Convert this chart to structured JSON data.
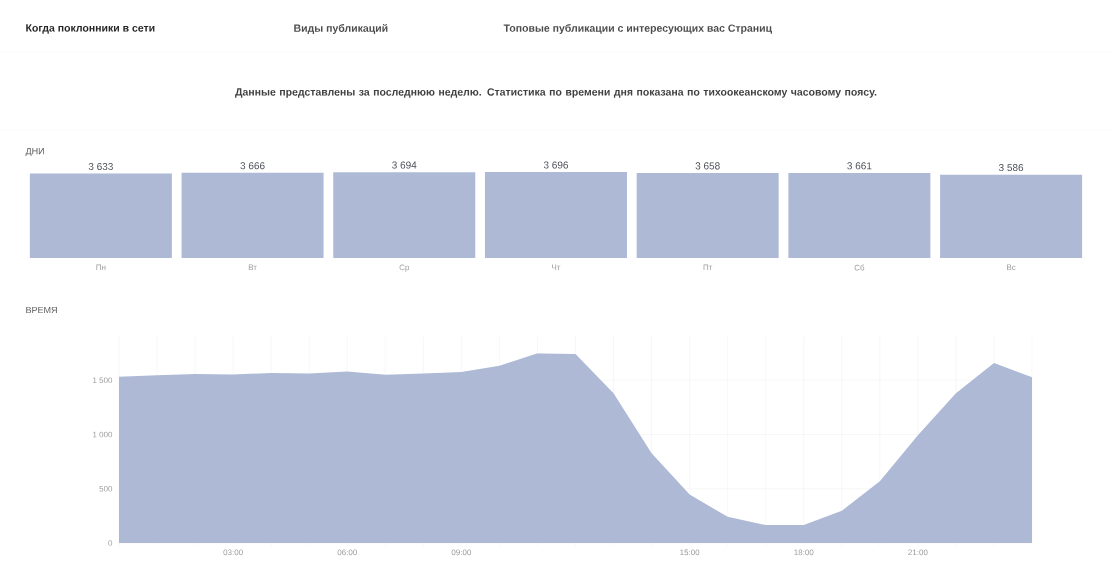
{
  "chart_data": [
    {
      "type": "bar",
      "title": "ДНИ",
      "annotations": [
        "Когда поклонники в сети",
        "Виды публикаций",
        "Топовые публикации с интересующих вас Страниц",
        "Данные представлены за последнюю неделю. Статистика по времени дня показана по тихоокеанскому часовому поясу."
      ],
      "categories": [
        "Пн",
        "Вт",
        "Ср",
        "Чт",
        "Пт",
        "Сб",
        "Вс"
      ],
      "values": [
        3633,
        3666,
        3694,
        3696,
        3658,
        3661,
        3586
      ],
      "value_labels": [
        "3 633",
        "3 666",
        "3 694",
        "3 696",
        "3 658",
        "3 661",
        "3 586"
      ],
      "color": "#aeb9d6",
      "ylim": [
        0,
        3700
      ]
    },
    {
      "type": "area",
      "title": "ВРЕМЯ",
      "x": [
        0,
        1,
        2,
        3,
        4,
        5,
        6,
        7,
        8,
        9,
        10,
        11,
        12,
        13,
        14,
        15,
        16,
        17,
        18,
        19,
        20,
        21,
        22,
        23,
        24
      ],
      "values": [
        1533,
        1547,
        1557,
        1553,
        1567,
        1563,
        1580,
        1550,
        1563,
        1576,
        1633,
        1748,
        1742,
        1381,
        826,
        446,
        241,
        165,
        165,
        297,
        568,
        992,
        1381,
        1659,
        1527
      ],
      "color": "#aeb9d6",
      "xlim": [
        0,
        24
      ],
      "ylim": [
        0,
        1880
      ],
      "xticks": [
        {
          "value": 0,
          "label": null
        },
        {
          "value": 1,
          "label": null
        },
        {
          "value": 2,
          "label": null
        },
        {
          "value": 3,
          "label": "03:00"
        },
        {
          "value": 4,
          "label": null
        },
        {
          "value": 5,
          "label": null
        },
        {
          "value": 6,
          "label": "06:00"
        },
        {
          "value": 7,
          "label": null
        },
        {
          "value": 8,
          "label": null
        },
        {
          "value": 9,
          "label": "09:00"
        },
        {
          "value": 10,
          "label": null
        },
        {
          "value": 11,
          "label": null
        },
        {
          "value": 12,
          "label": null
        },
        {
          "value": 13,
          "label": null
        },
        {
          "value": 14,
          "label": null
        },
        {
          "value": 15,
          "label": "15:00"
        },
        {
          "value": 16,
          "label": null
        },
        {
          "value": 17,
          "label": null
        },
        {
          "value": 18,
          "label": "18:00"
        },
        {
          "value": 19,
          "label": null
        },
        {
          "value": 20,
          "label": null
        },
        {
          "value": 21,
          "label": "21:00"
        },
        {
          "value": 22,
          "label": null
        },
        {
          "value": 23,
          "label": null
        },
        {
          "value": 24,
          "label": null
        }
      ],
      "yticks": [
        0,
        500,
        {
          "value": 1000,
          "label": "1 000"
        },
        {
          "value": 1500,
          "label": "1 500"
        }
      ],
      "grid": true
    }
  ]
}
